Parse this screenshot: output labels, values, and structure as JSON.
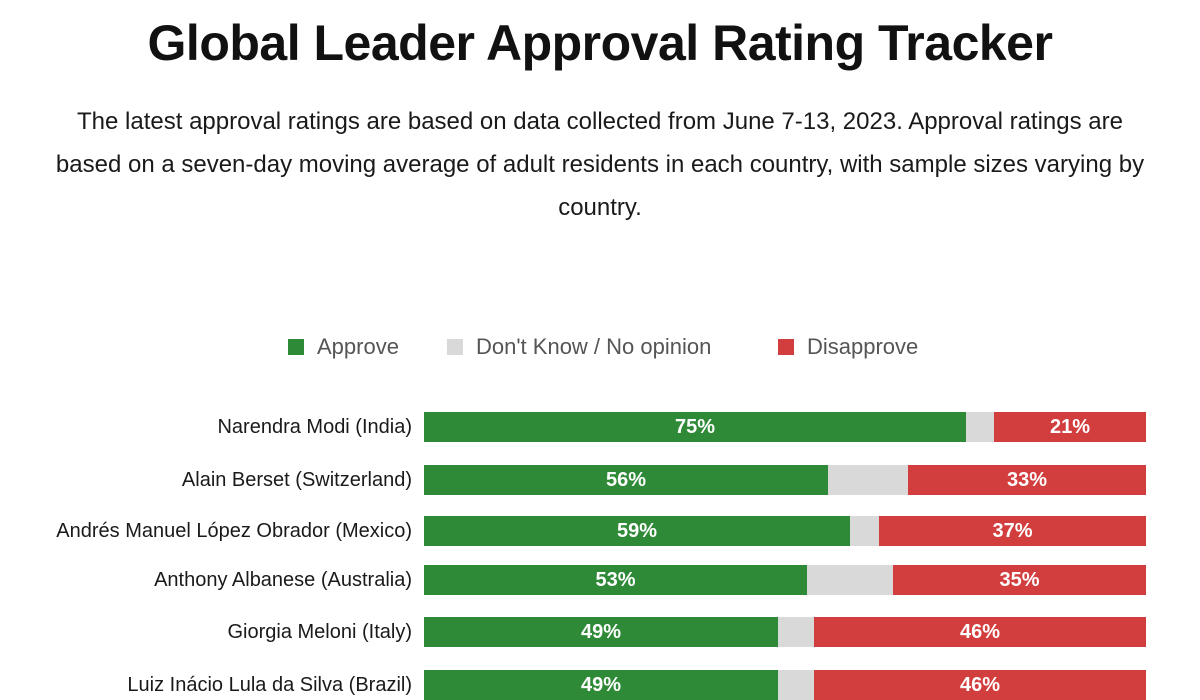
{
  "header": {
    "title": "Global Leader Approval Rating Tracker",
    "subtitle": "The latest approval ratings are based on data collected from June 7-13, 2023. Approval ratings are based on a seven-day moving average of adult residents in each country, with sample sizes varying by country."
  },
  "colors": {
    "approve": "#2f8a37",
    "dont_know": "#d9d9d9",
    "disapprove": "#d23d3d"
  },
  "chart_data": {
    "type": "bar",
    "orientation": "horizontal",
    "stacked": true,
    "normalized": true,
    "title": "Global Leader Approval Rating Tracker",
    "legend": {
      "position": "top",
      "entries": [
        "Approve",
        "Don't Know / No opinion",
        "Disapprove"
      ]
    },
    "categories": [
      "Narendra Modi (India)",
      "Alain Berset (Switzerland)",
      "Andrés Manuel López Obrador (Mexico)",
      "Anthony Albanese (Australia)",
      "Giorgia Meloni (Italy)",
      "Luiz Inácio Lula da Silva (Brazil)"
    ],
    "series": [
      {
        "name": "Approve",
        "values": [
          75,
          56,
          59,
          53,
          49,
          49
        ],
        "labels": [
          "75%",
          "56%",
          "59%",
          "53%",
          "49%",
          "49%"
        ]
      },
      {
        "name": "Don't Know / No opinion",
        "values": [
          4,
          11,
          4,
          12,
          5,
          5
        ]
      },
      {
        "name": "Disapprove",
        "values": [
          21,
          33,
          37,
          35,
          46,
          46
        ],
        "labels": [
          "21%",
          "33%",
          "37%",
          "35%",
          "46%",
          "46%"
        ]
      }
    ],
    "xlim": [
      0,
      100
    ],
    "grid": false,
    "xlabel": "",
    "ylabel": ""
  }
}
